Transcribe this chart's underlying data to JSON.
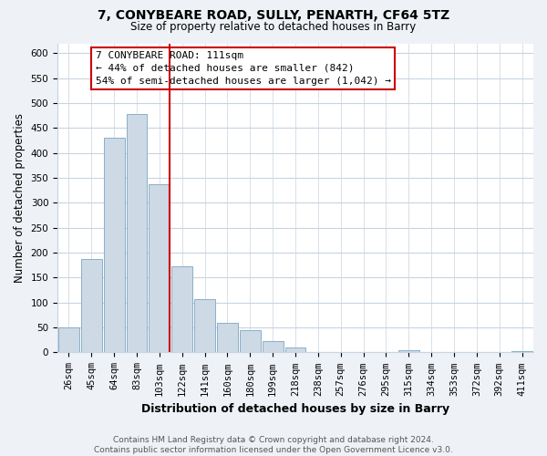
{
  "title": "7, CONYBEARE ROAD, SULLY, PENARTH, CF64 5TZ",
  "subtitle": "Size of property relative to detached houses in Barry",
  "xlabel": "Distribution of detached houses by size in Barry",
  "ylabel": "Number of detached properties",
  "bar_labels": [
    "26sqm",
    "45sqm",
    "64sqm",
    "83sqm",
    "103sqm",
    "122sqm",
    "141sqm",
    "160sqm",
    "180sqm",
    "199sqm",
    "218sqm",
    "238sqm",
    "257sqm",
    "276sqm",
    "295sqm",
    "315sqm",
    "334sqm",
    "353sqm",
    "372sqm",
    "392sqm",
    "411sqm"
  ],
  "bar_values": [
    50,
    187,
    430,
    478,
    338,
    172,
    107,
    60,
    44,
    22,
    10,
    0,
    0,
    0,
    0,
    5,
    0,
    0,
    0,
    0,
    3
  ],
  "bar_color": "#cdd9e5",
  "bar_edge_color": "#8aafc8",
  "vline_color": "#cc0000",
  "annotation_line1": "7 CONYBEARE ROAD: 111sqm",
  "annotation_line2": "← 44% of detached houses are smaller (842)",
  "annotation_line3": "54% of semi-detached houses are larger (1,042) →",
  "annotation_box_color": "#ffffff",
  "annotation_box_edge": "#cc0000",
  "ylim": [
    0,
    620
  ],
  "yticks": [
    0,
    50,
    100,
    150,
    200,
    250,
    300,
    350,
    400,
    450,
    500,
    550,
    600
  ],
  "footer_text": "Contains HM Land Registry data © Crown copyright and database right 2024.\nContains public sector information licensed under the Open Government Licence v3.0.",
  "bg_color": "#eef2f7",
  "plot_bg_color": "#ffffff",
  "grid_color": "#c8d4e0",
  "title_fontsize": 10,
  "subtitle_fontsize": 8.5,
  "ylabel_fontsize": 8.5,
  "xlabel_fontsize": 9,
  "tick_fontsize": 7.5,
  "footer_fontsize": 6.5
}
